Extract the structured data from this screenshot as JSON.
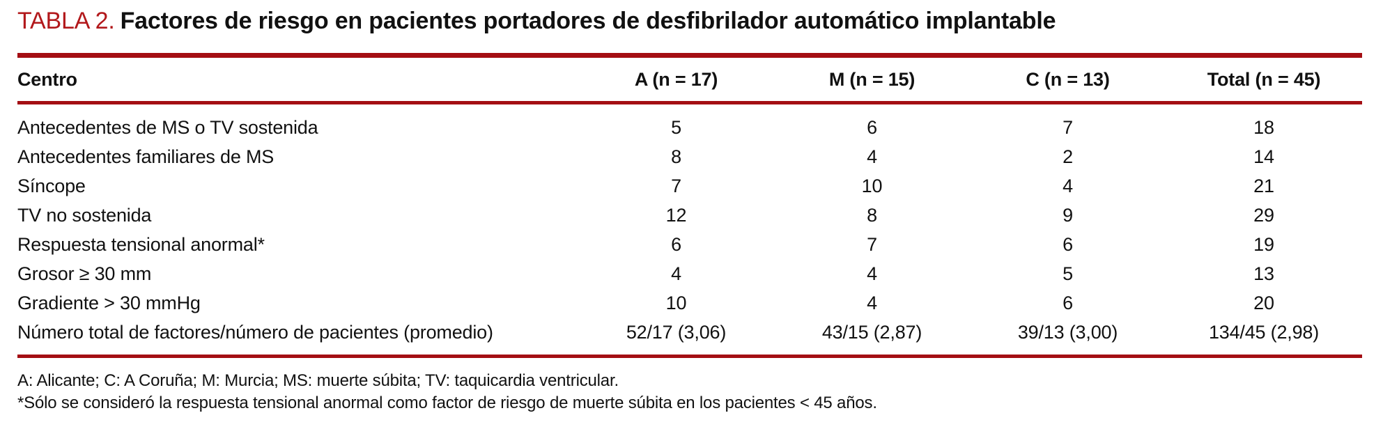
{
  "colors": {
    "accent_red": "#b2181b",
    "rule_red": "#a40e13",
    "text": "#111111"
  },
  "title": {
    "label": "TABLA 2.",
    "caption": "Factores de riesgo en pacientes portadores de desfibrilador automático implantable"
  },
  "chart_data": {
    "type": "table",
    "title": "TABLA 2. Factores de riesgo en pacientes portadores de desfibrilador automático implantable",
    "columns": [
      "Centro",
      "A (n = 17)",
      "M (n = 15)",
      "C (n = 13)",
      "Total (n = 45)"
    ],
    "rows": [
      {
        "label": "Antecedentes de MS o TV sostenida",
        "values": [
          "5",
          "6",
          "7",
          "18"
        ]
      },
      {
        "label": "Antecedentes familiares de MS",
        "values": [
          "8",
          "4",
          "2",
          "14"
        ]
      },
      {
        "label": "Síncope",
        "values": [
          "7",
          "10",
          "4",
          "21"
        ]
      },
      {
        "label": "TV no sostenida",
        "values": [
          "12",
          "8",
          "9",
          "29"
        ]
      },
      {
        "label": "Respuesta tensional anormal*",
        "values": [
          "6",
          "7",
          "6",
          "19"
        ]
      },
      {
        "label": "Grosor ≥ 30 mm",
        "values": [
          "4",
          "4",
          "5",
          "13"
        ]
      },
      {
        "label": "Gradiente > 30 mmHg",
        "values": [
          "10",
          "4",
          "6",
          "20"
        ]
      },
      {
        "label": "Número total de factores/número de pacientes (promedio)",
        "values": [
          "52/17 (3,06)",
          "43/15 (2,87)",
          "39/13 (3,00)",
          "134/45 (2,98)"
        ]
      }
    ]
  },
  "footnotes": [
    "A: Alicante; C: A Coruña; M: Murcia; MS: muerte súbita; TV: taquicardia ventricular.",
    "*Sólo se consideró la respuesta tensional anormal como factor de riesgo de muerte súbita en los pacientes < 45 años."
  ]
}
